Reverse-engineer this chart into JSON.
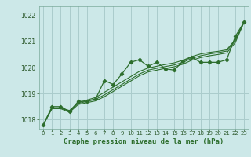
{
  "title": "Graphe pression niveau de la mer (hPa)",
  "background_color": "#cce8e8",
  "grid_color": "#aacccc",
  "line_color": "#2d6e2d",
  "ylim": [
    1017.65,
    1022.35
  ],
  "xlim": [
    -0.5,
    23.5
  ],
  "yticks": [
    1018,
    1019,
    1020,
    1021,
    1022
  ],
  "xticks": [
    0,
    1,
    2,
    3,
    4,
    5,
    6,
    7,
    8,
    9,
    10,
    11,
    12,
    13,
    14,
    15,
    16,
    17,
    18,
    19,
    20,
    21,
    22,
    23
  ],
  "series": [
    [
      1017.8,
      1018.5,
      1018.5,
      1018.3,
      1018.7,
      1018.7,
      1018.8,
      1019.5,
      1019.35,
      1019.75,
      1020.2,
      1020.3,
      1020.05,
      1020.2,
      1019.95,
      1019.9,
      1020.25,
      1020.4,
      1020.2,
      1020.2,
      1020.2,
      1020.3,
      1021.2,
      1021.75
    ],
    [
      1017.8,
      1018.45,
      1018.45,
      1018.35,
      1018.65,
      1018.75,
      1018.85,
      1019.05,
      1019.25,
      1019.45,
      1019.65,
      1019.85,
      1019.98,
      1020.05,
      1020.12,
      1020.18,
      1020.28,
      1020.42,
      1020.52,
      1020.58,
      1020.62,
      1020.68,
      1021.08,
      1021.75
    ],
    [
      1017.8,
      1018.45,
      1018.45,
      1018.32,
      1018.62,
      1018.7,
      1018.78,
      1018.95,
      1019.15,
      1019.35,
      1019.55,
      1019.75,
      1019.9,
      1019.97,
      1020.04,
      1020.1,
      1020.2,
      1020.35,
      1020.45,
      1020.52,
      1020.57,
      1020.63,
      1021.03,
      1021.75
    ],
    [
      1017.8,
      1018.42,
      1018.42,
      1018.28,
      1018.58,
      1018.65,
      1018.72,
      1018.88,
      1019.08,
      1019.28,
      1019.48,
      1019.68,
      1019.83,
      1019.9,
      1019.97,
      1020.03,
      1020.13,
      1020.28,
      1020.38,
      1020.45,
      1020.5,
      1020.56,
      1020.96,
      1021.75
    ]
  ],
  "x": [
    0,
    1,
    2,
    3,
    4,
    5,
    6,
    7,
    8,
    9,
    10,
    11,
    12,
    13,
    14,
    15,
    16,
    17,
    18,
    19,
    20,
    21,
    22,
    23
  ]
}
